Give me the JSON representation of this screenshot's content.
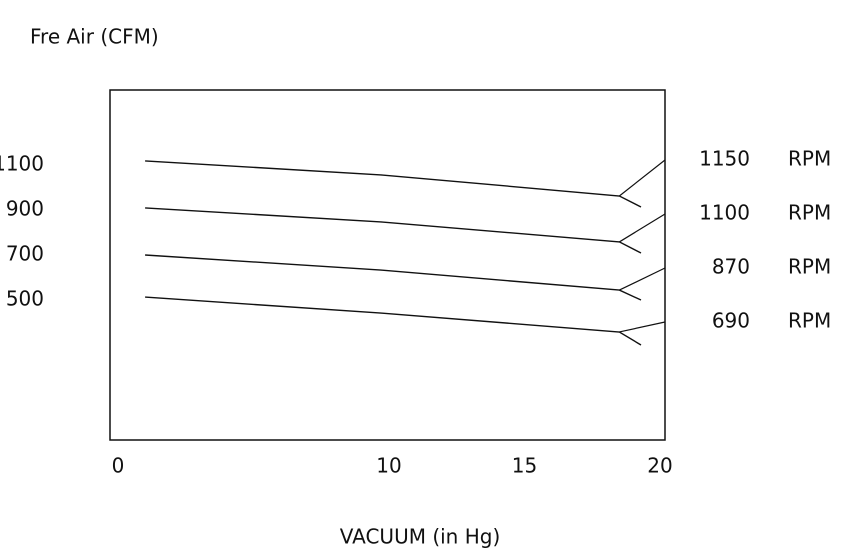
{
  "chart_data": {
    "type": "line",
    "title": "Fre Air (CFM)",
    "x_label": "VACUUM (in Hg)",
    "xlim": [
      0,
      20
    ],
    "xticks": [
      0,
      10,
      15,
      20
    ],
    "ylim": [
      -122,
      1433
    ],
    "yticks": [
      500,
      700,
      900,
      1100
    ],
    "grid": false,
    "series_unit": "RPM",
    "x": [
      1.0,
      9.7,
      18.5,
      19.3
    ],
    "series": [
      {
        "name": "1150",
        "color": "#111111",
        "values": [
          1118,
          1056,
          962,
          913
        ]
      },
      {
        "name": "1100",
        "color": "#111111",
        "values": [
          909,
          847,
          758,
          709
        ]
      },
      {
        "name": "870",
        "color": "#111111",
        "values": [
          700,
          633,
          544,
          500
        ]
      },
      {
        "name": "690",
        "color": "#111111",
        "values": [
          513,
          442,
          358,
          300
        ]
      }
    ]
  }
}
